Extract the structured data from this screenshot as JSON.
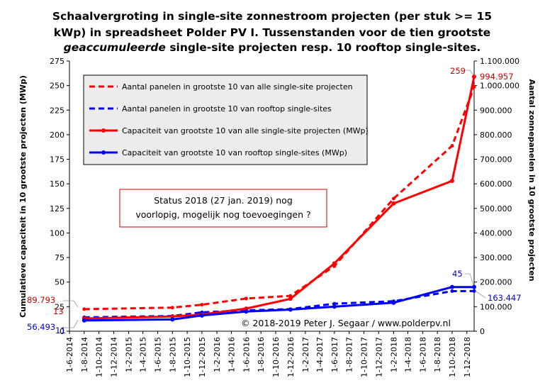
{
  "chart_data": {
    "type": "line",
    "title_lines": [
      "Schaalvergroting  in  single-site  zonnestroom  projecten  (per  stuk  >=  15",
      "kWp)  in  spreadsheet  Polder  PV  I.  Tussenstanden  voor  de  tien  grootste",
      "geaccumuleerde  single-site  projecten  resp.  10  rooftop  single-sites."
    ],
    "title_italic_word": "geaccumuleerde",
    "ylabel_left": "Cumulatieve capaciteit in 10 grootste projecten (MWp)",
    "ylabel_right": "Aantal zonnepanelen in 10 grootste projecten",
    "ylim_left": [
      0,
      275
    ],
    "yticks_left": [
      "0",
      "25",
      "50",
      "75",
      "100",
      "125",
      "150",
      "175",
      "200",
      "225",
      "250",
      "275"
    ],
    "ylim_right": [
      0,
      1100000
    ],
    "yticks_right": [
      "0",
      "100.000",
      "200.000",
      "300.000",
      "400.000",
      "500.000",
      "600.000",
      "700.000",
      "800.000",
      "900.000",
      "1.000.000",
      "1.100.000"
    ],
    "x_ticks": [
      "1-6-2014",
      "1-8-2014",
      "1-10-2014",
      "1-12-2014",
      "1-2-2015",
      "1-4-2015",
      "1-6-2015",
      "1-8-2015",
      "1-10-2015",
      "1-12-2015",
      "1-2-2016",
      "1-4-2016",
      "1-6-2016",
      "1-8-2016",
      "1-10-2016",
      "1-12-2016",
      "1-2-2017",
      "1-4-2017",
      "1-6-2017",
      "1-8-2017",
      "1-10-2017",
      "1-12-2017",
      "1-2-2018",
      "1-4-2018",
      "1-6-2018",
      "1-8-2018",
      "1-10-2018",
      "1-12-2018"
    ],
    "series": [
      {
        "name": "Aantal panelen in grootste 10 van alle single-site projecten",
        "axis": "right",
        "color": "#ff0000",
        "dashed": true,
        "marker": false,
        "x": [
          "2014-08-01",
          "2015-08-01",
          "2015-12-01",
          "2016-06-01",
          "2016-12-01",
          "2017-06-01",
          "2018-02-01",
          "2018-10-01",
          "2018-12-31"
        ],
        "values": [
          89793,
          96000,
          108000,
          133000,
          144000,
          265000,
          540000,
          755000,
          994957
        ]
      },
      {
        "name": "Aantal panelen in grootste 10 van rooftop single-sites",
        "axis": "right",
        "color": "#0000ff",
        "dashed": true,
        "marker": false,
        "x": [
          "2014-08-01",
          "2015-08-01",
          "2015-12-01",
          "2016-06-01",
          "2016-12-01",
          "2017-06-01",
          "2018-02-01",
          "2018-10-01",
          "2018-12-31"
        ],
        "values": [
          56493,
          62000,
          77000,
          85000,
          90000,
          112000,
          122000,
          163000,
          163447
        ]
      },
      {
        "name": "Capaciteit van grootste 10 van alle single-site projecten (MWp)",
        "axis": "left",
        "color": "#ff0000",
        "dashed": false,
        "marker": true,
        "x": [
          "2014-08-01",
          "2015-08-01",
          "2015-12-01",
          "2016-06-01",
          "2016-12-01",
          "2017-06-01",
          "2018-02-01",
          "2018-10-01",
          "2018-12-31"
        ],
        "values": [
          13,
          15,
          17,
          23,
          33,
          69,
          130,
          153,
          259
        ]
      },
      {
        "name": "Capaciteit van grootste 10 van rooftop single-sites (MWp)",
        "axis": "left",
        "color": "#0000ff",
        "dashed": false,
        "marker": true,
        "x": [
          "2014-08-01",
          "2015-08-01",
          "2015-12-01",
          "2016-06-01",
          "2016-12-01",
          "2017-06-01",
          "2018-02-01",
          "2018-10-01",
          "2018-12-31"
        ],
        "values": [
          11,
          12,
          16,
          20,
          22,
          25,
          29,
          45,
          45
        ]
      }
    ],
    "annotations": {
      "red_left_right_axis": "89.793",
      "red_left_left_axis": "13",
      "blue_left_right_axis": "56.493",
      "blue_left_left_axis": "11",
      "red_end_left_axis": "259",
      "red_end_right_axis": "994.957",
      "blue_end_left_axis": "45",
      "blue_end_right_axis": "163.447"
    },
    "status_lines": [
      "Status 2018 (27 jan. 2019) nog",
      "voorlopig, mogelijk  nog toevoegingen ?"
    ],
    "copyright": "© 2018-2019  Peter J. Segaar / www.polderpv.nl",
    "legend_position": "top-left",
    "grid": false,
    "colors": {
      "red": "#ff0000",
      "blue": "#0000ff",
      "legend_bg": "#ececec",
      "status_border": "#cc0000",
      "annotation_red": "#cc0000",
      "annotation_blue": "#0000cc"
    }
  }
}
